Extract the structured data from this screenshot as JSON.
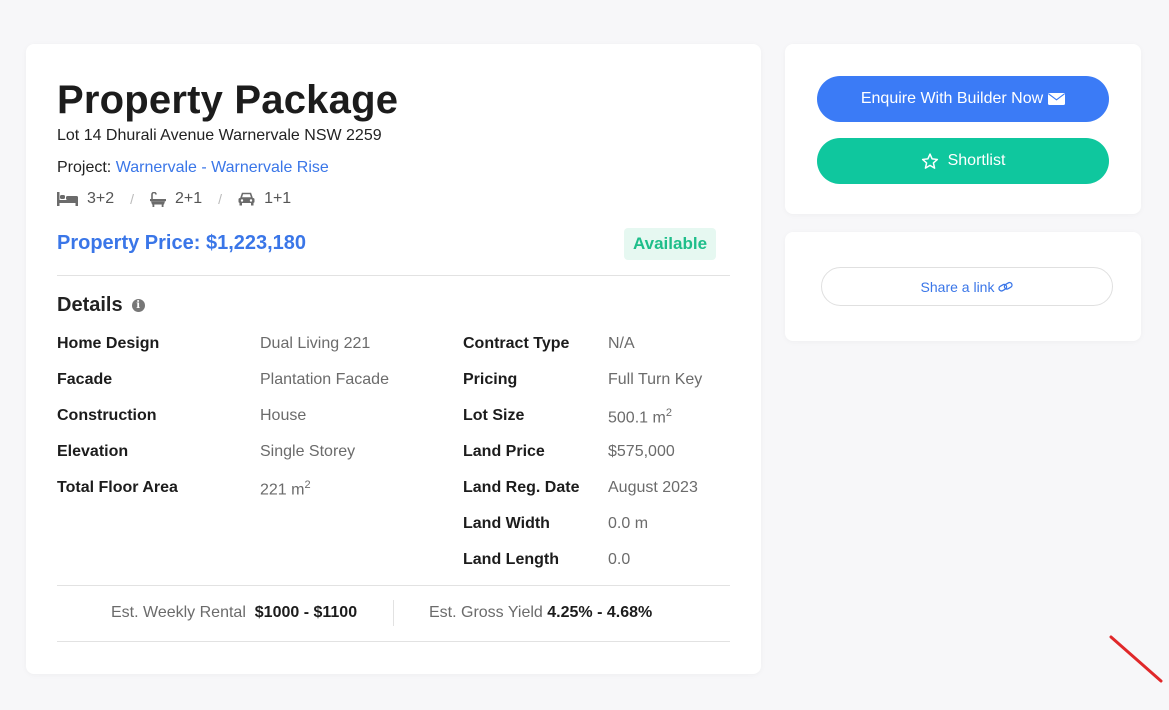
{
  "property": {
    "title": "Property Package",
    "address": "Lot 14 Dhurali Avenue Warnervale NSW 2259",
    "project_prefix": "Project:",
    "project_link": "Warnervale - Warnervale Rise",
    "features": {
      "beds": "3+2",
      "baths": "2+1",
      "cars": "1+1",
      "separator": "/"
    },
    "price": "Property Price: $1,223,180",
    "status": "Available"
  },
  "details": {
    "heading": "Details",
    "info_icon": "i",
    "left": [
      {
        "label": "Home Design",
        "value": "Dual Living 221"
      },
      {
        "label": "Facade",
        "value": "Plantation Facade"
      },
      {
        "label": "Construction",
        "value": "House"
      },
      {
        "label": "Elevation",
        "value": "Single Storey"
      },
      {
        "label": "Total Floor Area",
        "value": "221 m",
        "sup": "2"
      }
    ],
    "right": [
      {
        "label": "Contract Type",
        "value": "N/A"
      },
      {
        "label": "Pricing",
        "value": "Full Turn Key"
      },
      {
        "label": "Lot Size",
        "value": "500.1 m",
        "sup": "2"
      },
      {
        "label": "Land Price",
        "value": "$575,000"
      },
      {
        "label": "Land Reg. Date",
        "value": "August 2023"
      },
      {
        "label": "Land Width",
        "value": "0.0 m"
      },
      {
        "label": "Land Length",
        "value": "0.0"
      }
    ]
  },
  "footer": {
    "rental_label": "Est. Weekly Rental",
    "rental_value": "$1000 - $1100",
    "yield_label": "Est. Gross Yield",
    "yield_value": "4.25% - 4.68%"
  },
  "actions": {
    "enquire_label": "Enquire With Builder Now",
    "shortlist_label": "Shortlist",
    "share_label": "Share a link"
  },
  "icons": {
    "bed": "bed-icon",
    "bath": "bath-icon",
    "car": "car-icon",
    "mail": "envelope-icon",
    "star": "star-icon",
    "link": "link-icon",
    "info": "info-icon"
  },
  "colors": {
    "accent_blue": "#3b7bf6",
    "link_blue": "#3a76e8",
    "green": "#0fc79e",
    "available_text": "#1ebe8a",
    "available_bg": "#e6f8f1"
  }
}
